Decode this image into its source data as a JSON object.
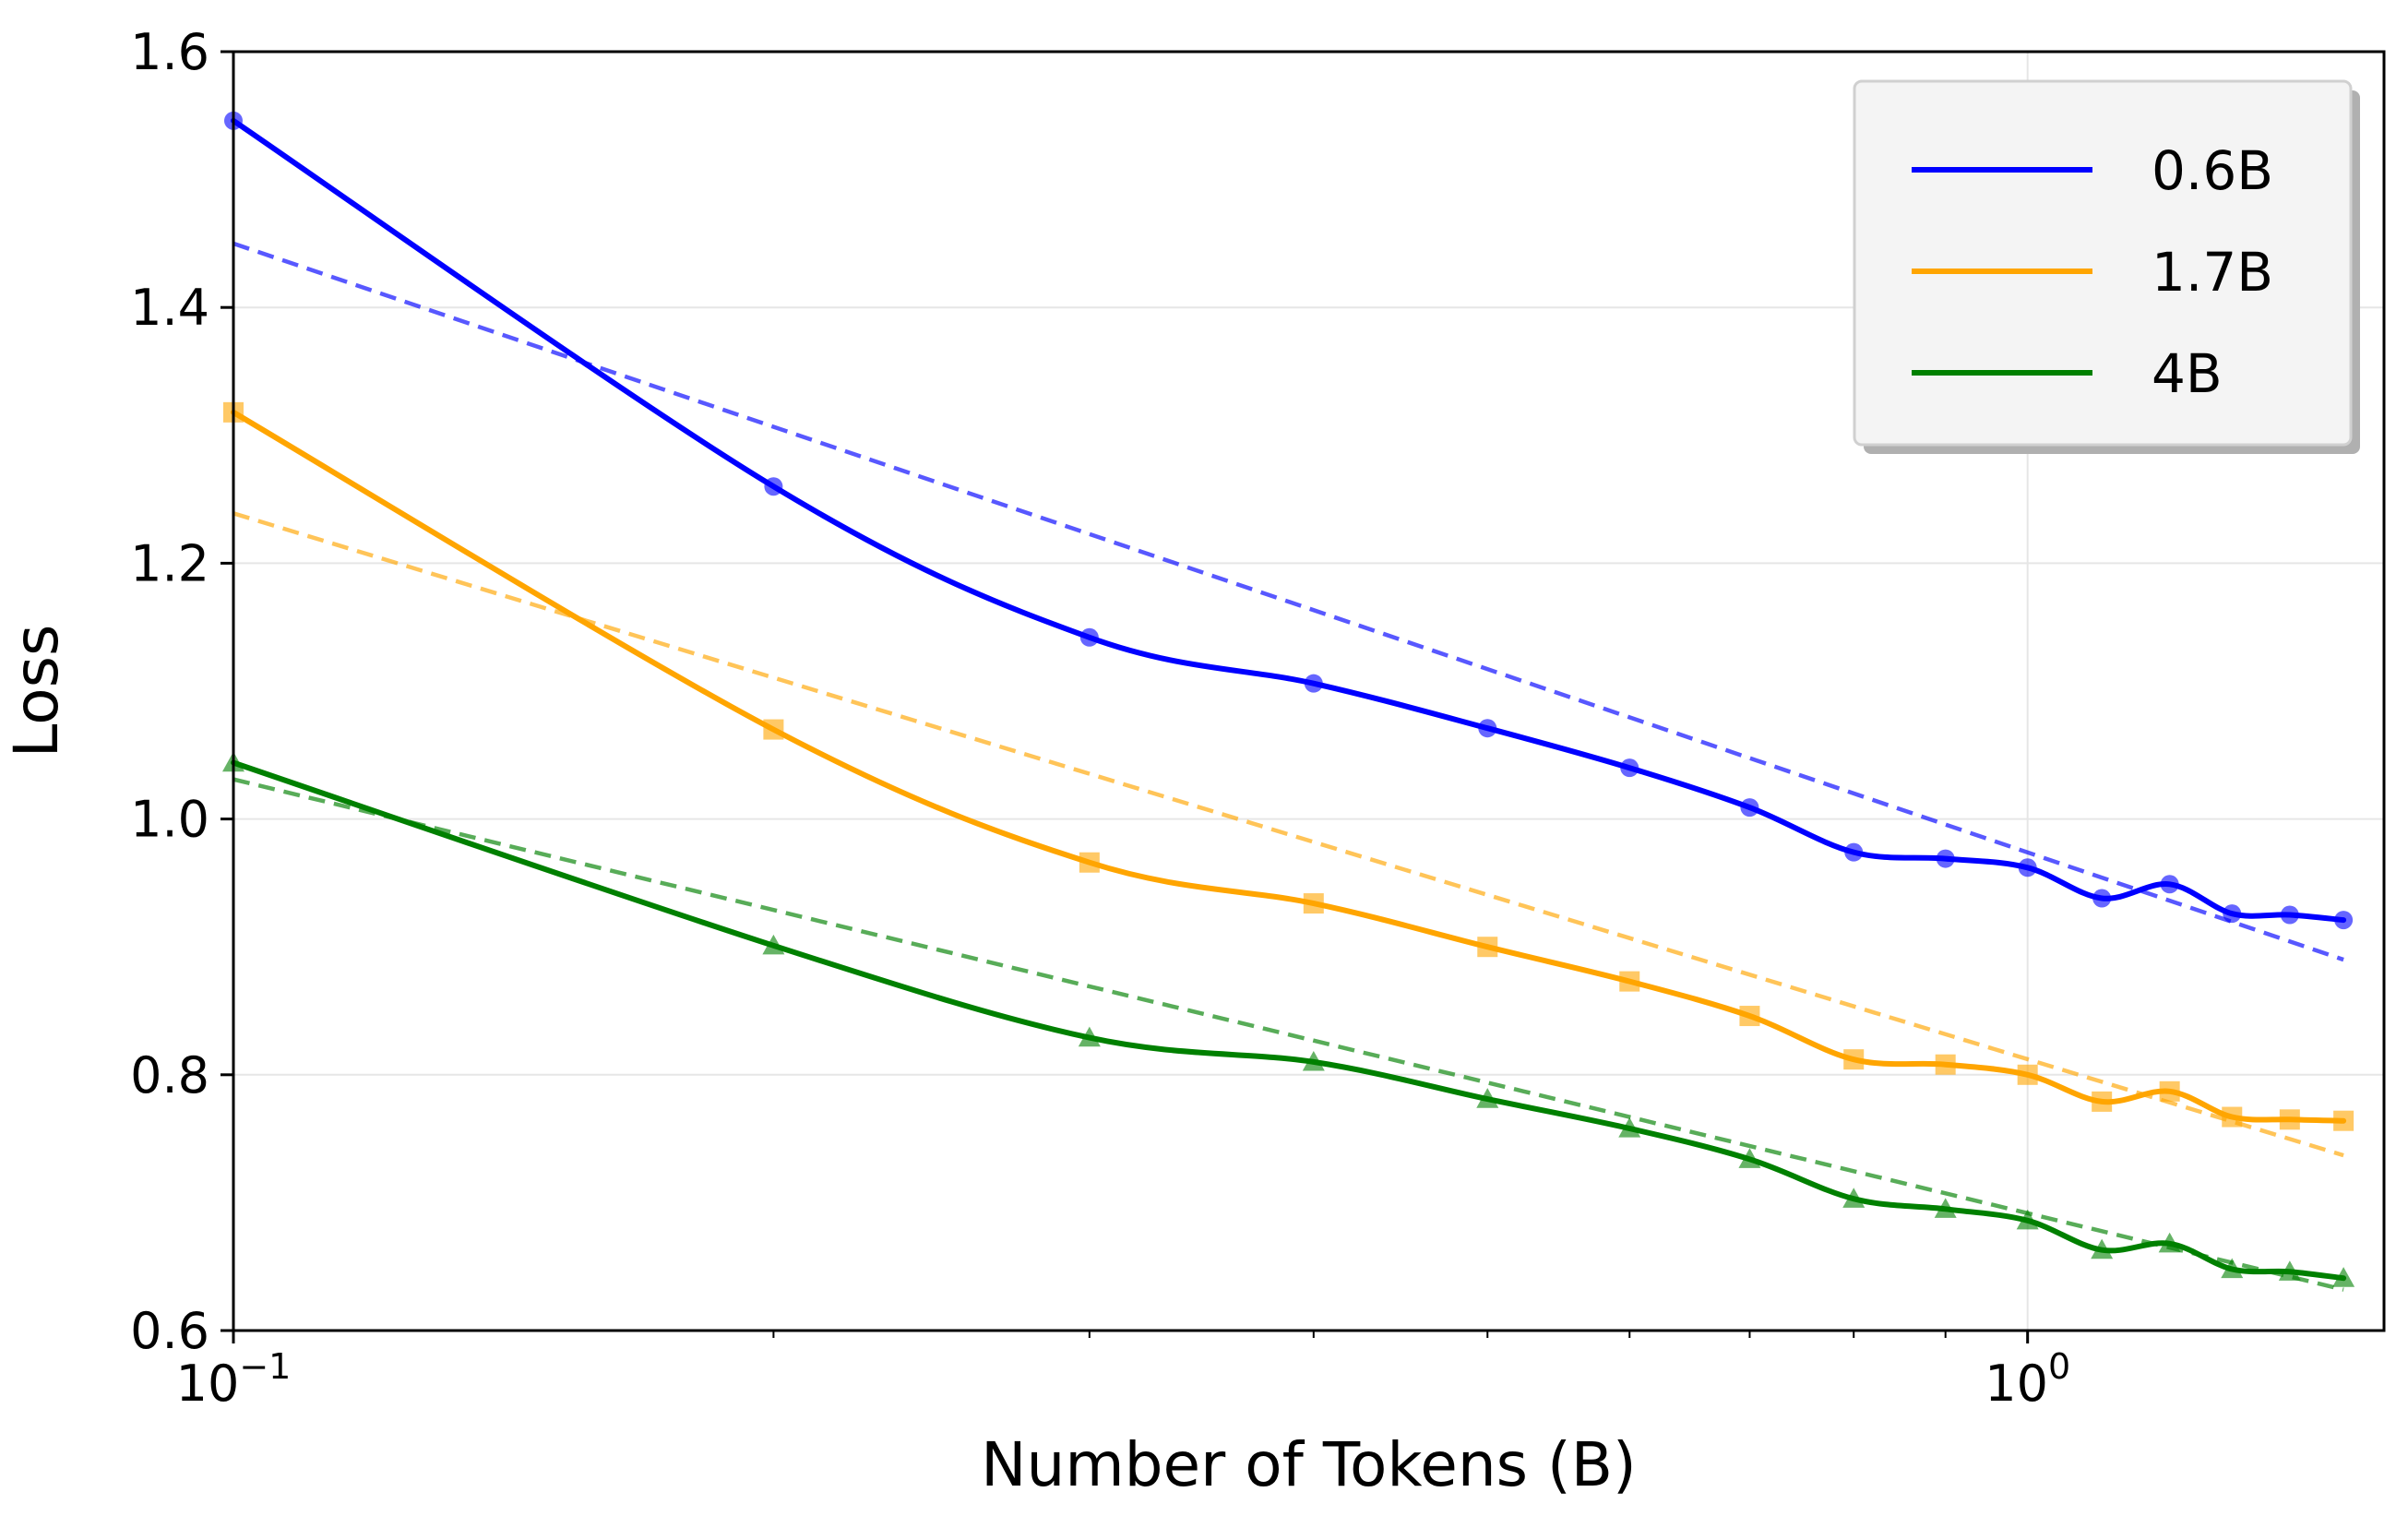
{
  "chart_data": {
    "type": "line",
    "title": "",
    "xlabel": "Number of Tokens (B)",
    "ylabel": "Loss",
    "xscale": "log",
    "xlim": [
      0.1,
      1.58
    ],
    "ylim": [
      0.6,
      1.6
    ],
    "yticks": [
      "0.6",
      "0.8",
      "1.0",
      "1.2",
      "1.4",
      "1.6"
    ],
    "xticks": [
      {
        "value": 0.1,
        "base": "10",
        "exp": "−1"
      },
      {
        "value": 1.0,
        "base": "10",
        "exp": "0"
      }
    ],
    "grid": true,
    "legend_position": "top-right",
    "x": [
      0.1,
      0.2,
      0.3,
      0.4,
      0.5,
      0.6,
      0.7,
      0.8,
      0.9,
      1.0,
      1.1,
      1.2,
      1.3,
      1.4,
      1.5
    ],
    "series": [
      {
        "name": "0.6B",
        "color": "#0000ff",
        "marker": "circle",
        "values": [
          1.546,
          1.26,
          1.142,
          1.106,
          1.071,
          1.04,
          1.009,
          0.974,
          0.969,
          0.962,
          0.938,
          0.949,
          0.926,
          0.925,
          0.921
        ],
        "fit": [
          1.45,
          0.89
        ]
      },
      {
        "name": "1.7B",
        "color": "#ffa500",
        "marker": "square",
        "values": [
          1.318,
          1.07,
          0.966,
          0.934,
          0.9,
          0.873,
          0.846,
          0.812,
          0.808,
          0.8,
          0.779,
          0.787,
          0.767,
          0.765,
          0.764
        ],
        "fit": [
          1.239,
          0.737
        ]
      },
      {
        "name": "4B",
        "color": "#008000",
        "marker": "triangle",
        "values": [
          1.044,
          0.901,
          0.829,
          0.81,
          0.781,
          0.758,
          0.734,
          0.703,
          0.695,
          0.686,
          0.663,
          0.668,
          0.648,
          0.646,
          0.641
        ],
        "fit": [
          1.031,
          0.632
        ]
      }
    ]
  }
}
